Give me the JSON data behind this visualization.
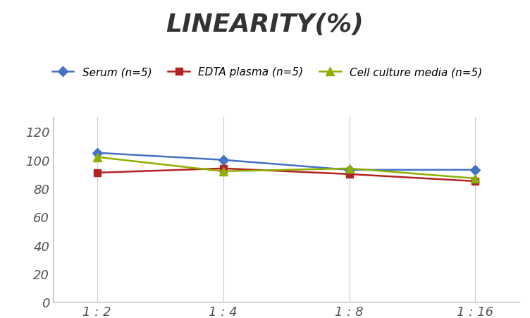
{
  "title": "LINEARITY(%)",
  "x_labels": [
    "1 : 2",
    "1 : 4",
    "1 : 8",
    "1 : 16"
  ],
  "x_positions": [
    0,
    1,
    2,
    3
  ],
  "series": [
    {
      "label": "Serum (n=5)",
      "values": [
        105,
        100,
        93,
        93
      ],
      "color": "#4472C4",
      "marker": "D",
      "marker_size": 7,
      "linewidth": 1.8
    },
    {
      "label": "EDTA plasma (n=5)",
      "values": [
        91,
        94,
        90,
        85
      ],
      "color": "#B22222",
      "marker": "s",
      "marker_size": 7,
      "linewidth": 1.8
    },
    {
      "label": "Cell culture media (n=5)",
      "values": [
        102,
        92,
        94,
        87
      ],
      "color": "#8DB000",
      "marker": "^",
      "marker_size": 8,
      "linewidth": 1.8
    }
  ],
  "ylim": [
    0,
    130
  ],
  "yticks": [
    0,
    20,
    40,
    60,
    80,
    100,
    120
  ],
  "background_color": "#ffffff",
  "grid_color": "#cccccc",
  "title_fontsize": 26,
  "legend_fontsize": 11,
  "tick_fontsize": 13
}
